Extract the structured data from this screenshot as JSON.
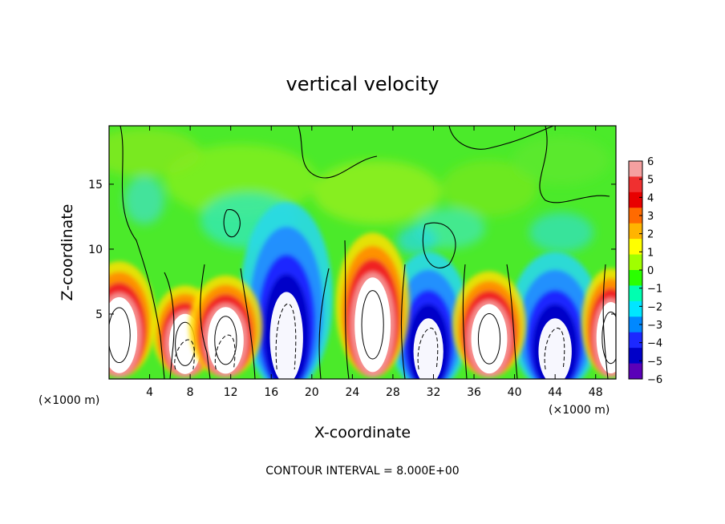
{
  "chart_data": {
    "type": "heatmap",
    "title": "vertical velocity",
    "xlabel": "X-coordinate",
    "ylabel": "Z-coordinate",
    "x_unit_left": "(×1000 m)",
    "x_unit_right": "(×1000 m)",
    "footer": "CONTOUR INTERVAL = 8.000E+00",
    "xlim": [
      0,
      50
    ],
    "ylim": [
      0,
      19.5
    ],
    "x_ticks": [
      4,
      8,
      12,
      16,
      20,
      24,
      28,
      32,
      36,
      40,
      44,
      48
    ],
    "y_ticks": [
      5,
      10,
      15
    ],
    "colorbar": {
      "min": -6,
      "max": 6,
      "tick_labels": [
        "6",
        "5",
        "4",
        "3",
        "2",
        "1",
        "0",
        "−1",
        "−2",
        "−3",
        "−4",
        "−5",
        "−6"
      ],
      "colors": [
        "#f5a0a0",
        "#f03030",
        "#e80000",
        "#ff6a00",
        "#ffb400",
        "#ffff00",
        "#a0ff00",
        "#2aff00",
        "#00ffb0",
        "#00e6ff",
        "#0088ff",
        "#1c28ff",
        "#0000c8",
        "#5a00b8"
      ]
    },
    "updrafts": [
      {
        "x": 1.0,
        "z_top": 8.5,
        "strength": 1.0
      },
      {
        "x": 7.5,
        "z_top": 6.8,
        "strength": 0.9
      },
      {
        "x": 11.5,
        "z_top": 7.5,
        "strength": 1.0
      },
      {
        "x": 26.0,
        "z_top": 10.5,
        "strength": 1.0
      },
      {
        "x": 37.5,
        "z_top": 7.8,
        "strength": 1.0
      },
      {
        "x": 49.5,
        "z_top": 8.0,
        "strength": 0.8
      }
    ],
    "downdrafts": [
      {
        "x": 17.5,
        "z_top": 12.0,
        "strength": 1.0
      },
      {
        "x": 31.5,
        "z_top": 8.5,
        "strength": 0.9
      },
      {
        "x": 44.0,
        "z_top": 8.5,
        "strength": 1.0
      }
    ]
  }
}
